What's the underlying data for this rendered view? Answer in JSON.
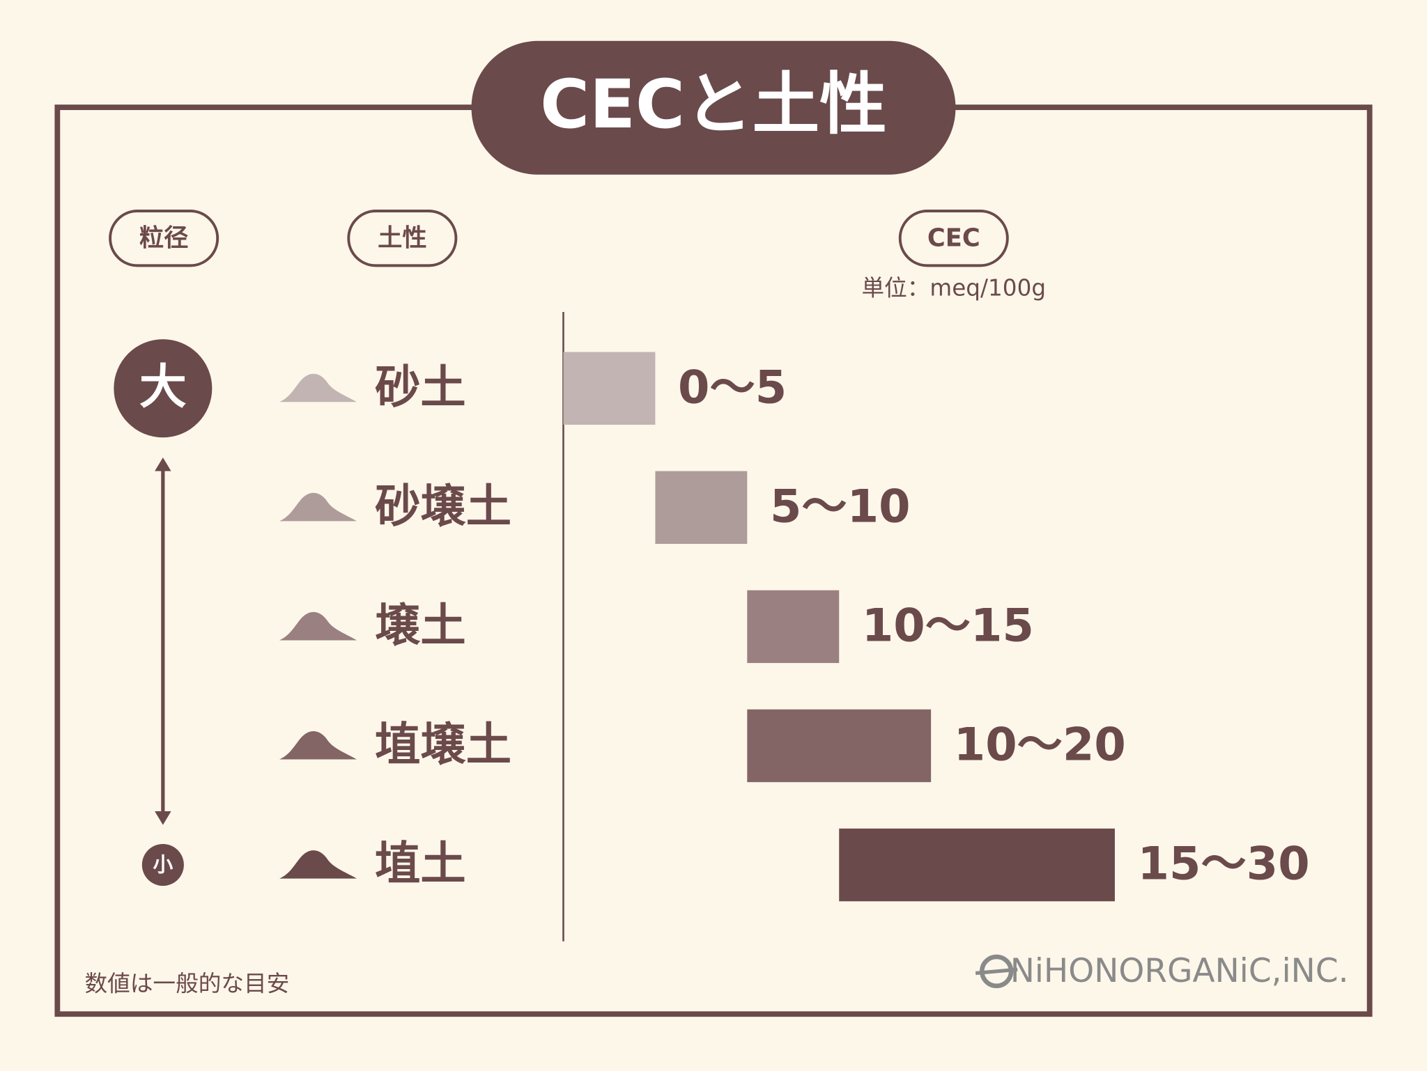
{
  "chart_data": {
    "type": "range-bar",
    "title": "CECと土性",
    "column_labels": [
      "粒径",
      "土性",
      "CEC"
    ],
    "unit_label": "単位：meq/100g",
    "size_labels": [
      "大",
      "小"
    ],
    "categories": [
      "砂土",
      "砂壌土",
      "壌土",
      "埴壌土",
      "埴土"
    ],
    "low": [
      0,
      5,
      10,
      10,
      15
    ],
    "high": [
      5,
      10,
      15,
      20,
      30
    ],
    "value_labels": [
      "0〜5",
      "5〜10",
      "10〜15",
      "10〜20",
      "15〜30"
    ],
    "colors": [
      "#c2b4b3",
      "#ae9c9a",
      "#9a8080",
      "#836566",
      "#6b4a4b"
    ],
    "note": "数値は一般的な目安",
    "brand": "NiHONORGANiC,iNC."
  }
}
